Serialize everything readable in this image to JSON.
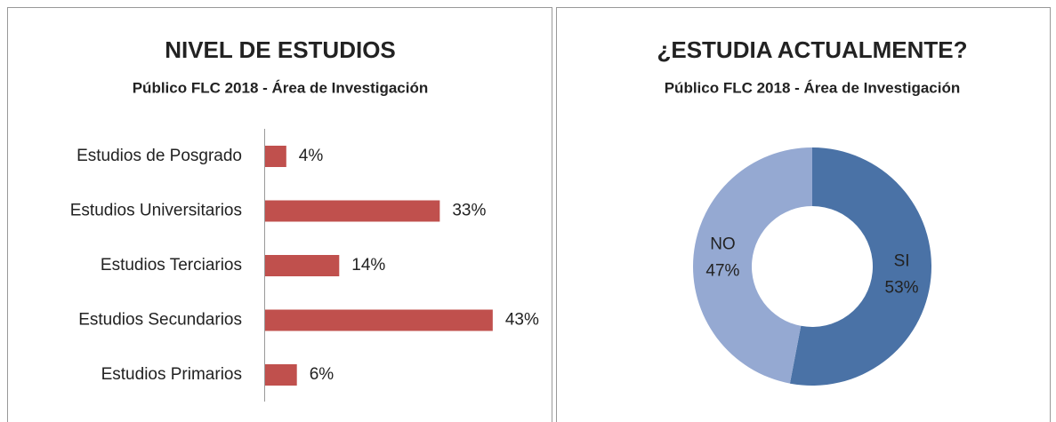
{
  "chart_data": [
    {
      "type": "bar",
      "orientation": "horizontal",
      "title": "NIVEL DE ESTUDIOS",
      "subtitle": "Público FLC 2018 - Área de Investigación",
      "categories": [
        "Estudios de Posgrado",
        "Estudios Universitarios",
        "Estudios Terciarios",
        "Estudios Secundarios",
        "Estudios Primarios"
      ],
      "values": [
        4,
        33,
        14,
        43,
        6
      ],
      "value_labels": [
        "4%",
        "33%",
        "14%",
        "43%",
        "6%"
      ],
      "color": "#c0504d"
    },
    {
      "type": "donut",
      "title": "¿ESTUDIA ACTUALMENTE?",
      "subtitle": "Público FLC 2018 - Área de Investigación",
      "categories": [
        "SI",
        "NO"
      ],
      "values": [
        53,
        47
      ],
      "value_labels": [
        "53%",
        "47%"
      ],
      "colors": [
        "#4a72a6",
        "#95a9d2"
      ]
    }
  ]
}
